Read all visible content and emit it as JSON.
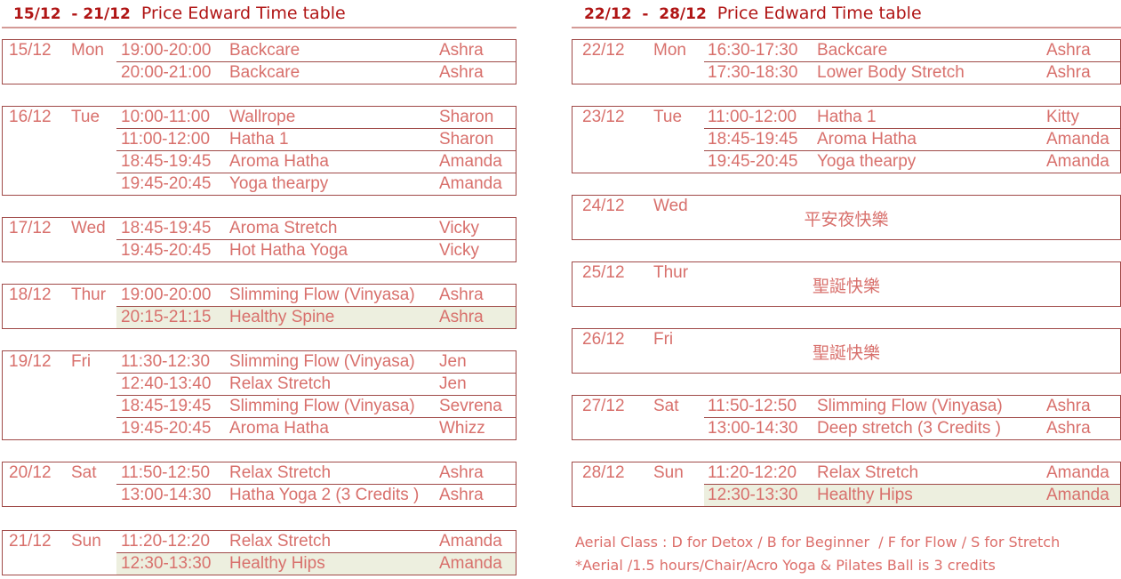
{
  "weeks": [
    {
      "range": "15/12  - 21/12",
      "title": "Price Edward Time table",
      "days": [
        {
          "date": "15/12",
          "day": "Mon",
          "classes": [
            {
              "time": "19:00-20:00",
              "name": "Backcare",
              "teacher": "Ashra"
            },
            {
              "time": "20:00-21:00",
              "name": "Backcare",
              "teacher": "Ashra"
            }
          ]
        },
        {
          "date": "16/12",
          "day": "Tue",
          "classes": [
            {
              "time": "10:00-11:00",
              "name": "Wallrope",
              "teacher": "Sharon"
            },
            {
              "time": "11:00-12:00",
              "name": "Hatha 1",
              "teacher": "Sharon"
            },
            {
              "time": "18:45-19:45",
              "name": "Aroma Hatha",
              "teacher": "Amanda"
            },
            {
              "time": "19:45-20:45",
              "name": "Yoga thearpy",
              "teacher": "Amanda"
            }
          ]
        },
        {
          "date": "17/12",
          "day": "Wed",
          "classes": [
            {
              "time": "18:45-19:45",
              "name": "Aroma Stretch",
              "teacher": "Vicky"
            },
            {
              "time": "19:45-20:45",
              "name": "Hot Hatha Yoga",
              "teacher": "Vicky"
            }
          ]
        },
        {
          "date": "18/12",
          "day": "Thur",
          "classes": [
            {
              "time": "19:00-20:00",
              "name": "Slimming Flow (Vinyasa)",
              "teacher": "Ashra"
            },
            {
              "time": "20:15-21:15",
              "name": "Healthy Spine",
              "teacher": "Ashra",
              "highlight": true
            }
          ]
        },
        {
          "date": "19/12",
          "day": "Fri",
          "classes": [
            {
              "time": "11:30-12:30",
              "name": "Slimming Flow (Vinyasa)",
              "teacher": "Jen"
            },
            {
              "time": "12:40-13:40",
              "name": "Relax Stretch",
              "teacher": "Jen"
            },
            {
              "time": "18:45-19:45",
              "name": "Slimming Flow (Vinyasa)",
              "teacher": "Sevrena"
            },
            {
              "time": "19:45-20:45",
              "name": "Aroma Hatha",
              "teacher": "Whizz"
            }
          ]
        },
        {
          "date": "20/12",
          "day": "Sat",
          "classes": [
            {
              "time": "11:50-12:50",
              "name": "Relax Stretch",
              "teacher": "Ashra"
            },
            {
              "time": "13:00-14:30",
              "name": "Hatha Yoga 2 (3 Credits )",
              "teacher": "Ashra"
            }
          ]
        },
        {
          "date": "21/12",
          "day": "Sun",
          "classes": [
            {
              "time": "11:20-12:20",
              "name": "Relax Stretch",
              "teacher": "Amanda"
            },
            {
              "time": "12:30-13:30",
              "name": "Healthy Hips",
              "teacher": "Amanda",
              "highlight": true
            }
          ]
        }
      ]
    },
    {
      "range": "22/12  -  28/12",
      "title": "Price Edward Time table",
      "days": [
        {
          "date": "22/12",
          "day": "Mon",
          "classes": [
            {
              "time": "16:30-17:30",
              "name": "Backcare",
              "teacher": "Ashra"
            },
            {
              "time": "17:30-18:30",
              "name": "Lower Body Stretch",
              "teacher": "Ashra"
            }
          ]
        },
        {
          "date": "23/12",
          "day": "Tue",
          "classes": [
            {
              "time": "11:00-12:00",
              "name": "Hatha 1",
              "teacher": "Kitty"
            },
            {
              "time": "18:45-19:45",
              "name": "Aroma Hatha",
              "teacher": "Amanda"
            },
            {
              "time": "19:45-20:45",
              "name": "Yoga thearpy",
              "teacher": "Amanda"
            }
          ]
        },
        {
          "date": "24/12",
          "day": "Wed",
          "holiday": "平安夜快樂",
          "classes": []
        },
        {
          "date": "25/12",
          "day": "Thur",
          "holiday": "聖誕快樂",
          "classes": []
        },
        {
          "date": "26/12",
          "day": "Fri",
          "holiday": "聖誕快樂",
          "classes": []
        },
        {
          "date": "27/12",
          "day": "Sat",
          "classes": [
            {
              "time": "11:50-12:50",
              "name": "Slimming Flow (Vinyasa)",
              "teacher": "Ashra"
            },
            {
              "time": "13:00-14:30",
              "name": "Deep stretch (3 Credits )",
              "teacher": "Ashra"
            }
          ]
        },
        {
          "date": "28/12",
          "day": "Sun",
          "classes": [
            {
              "time": "11:20-12:20",
              "name": "Relax Stretch",
              "teacher": "Amanda"
            },
            {
              "time": "12:30-13:30",
              "name": "Healthy Hips",
              "teacher": "Amanda",
              "highlight": true
            }
          ]
        }
      ]
    }
  ],
  "notes": [
    "Aerial Class : D for Detox / B for Beginner  / F for Flow / S for Stretch",
    "*Aerial /1.5 hours/Chair/Acro Yoga & Pilates Ball is 3 credits"
  ],
  "colors": {
    "title": "#b01515",
    "text": "#d8706c",
    "border": "#a04a48",
    "highlight": "#edefdf"
  }
}
